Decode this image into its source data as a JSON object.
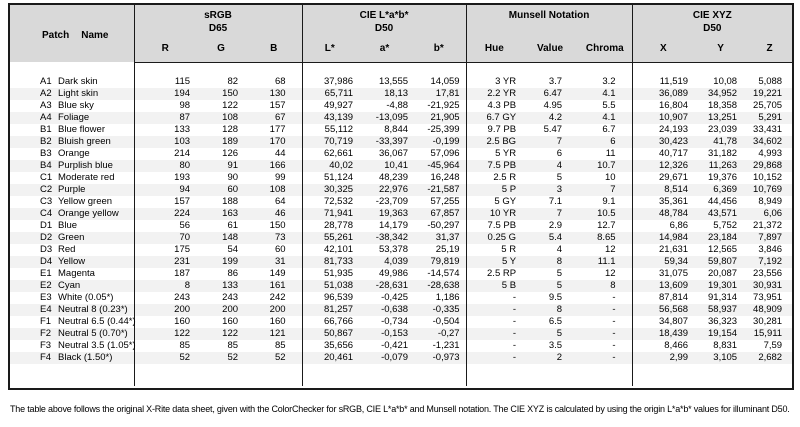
{
  "header": {
    "patch": "Patch",
    "name": "Name",
    "groups": [
      {
        "title": "sRGB",
        "sub": "D65",
        "cols": [
          "R",
          "G",
          "B"
        ]
      },
      {
        "title": "CIE L*a*b*",
        "sub": "D50",
        "cols": [
          "L*",
          "a*",
          "b*"
        ]
      },
      {
        "title": "Munsell Notation",
        "sub": "",
        "cols": [
          "Hue",
          "Value",
          "Chroma"
        ]
      },
      {
        "title": "CIE XYZ",
        "sub": "D50",
        "cols": [
          "X",
          "Y",
          "Z"
        ]
      }
    ]
  },
  "rows": [
    {
      "patch": "A1",
      "name": "Dark skin",
      "R": "115",
      "G": "82",
      "B": "68",
      "L": "37,986",
      "a": "13,555",
      "b": "14,059",
      "hue": "3 YR",
      "value": "3.7",
      "chroma": "3.2",
      "X": "11,519",
      "Y": "10,08",
      "Z": "5,088"
    },
    {
      "patch": "A2",
      "name": "Light skin",
      "R": "194",
      "G": "150",
      "B": "130",
      "L": "65,711",
      "a": "18,13",
      "b": "17,81",
      "hue": "2.2 YR",
      "value": "6.47",
      "chroma": "4.1",
      "X": "36,089",
      "Y": "34,952",
      "Z": "19,221"
    },
    {
      "patch": "A3",
      "name": "Blue sky",
      "R": "98",
      "G": "122",
      "B": "157",
      "L": "49,927",
      "a": "-4,88",
      "b": "-21,925",
      "hue": "4.3 PB",
      "value": "4.95",
      "chroma": "5.5",
      "X": "16,804",
      "Y": "18,358",
      "Z": "25,705"
    },
    {
      "patch": "A4",
      "name": "Foliage",
      "R": "87",
      "G": "108",
      "B": "67",
      "L": "43,139",
      "a": "-13,095",
      "b": "21,905",
      "hue": "6.7 GY",
      "value": "4.2",
      "chroma": "4.1",
      "X": "10,907",
      "Y": "13,251",
      "Z": "5,291"
    },
    {
      "patch": "B1",
      "name": "Blue flower",
      "R": "133",
      "G": "128",
      "B": "177",
      "L": "55,112",
      "a": "8,844",
      "b": "-25,399",
      "hue": "9.7 PB",
      "value": "5.47",
      "chroma": "6.7",
      "X": "24,193",
      "Y": "23,039",
      "Z": "33,431"
    },
    {
      "patch": "B2",
      "name": "Bluish green",
      "R": "103",
      "G": "189",
      "B": "170",
      "L": "70,719",
      "a": "-33,397",
      "b": "-0,199",
      "hue": "2.5 BG",
      "value": "7",
      "chroma": "6",
      "X": "30,423",
      "Y": "41,78",
      "Z": "34,602"
    },
    {
      "patch": "B3",
      "name": "Orange",
      "R": "214",
      "G": "126",
      "B": "44",
      "L": "62,661",
      "a": "36,067",
      "b": "57,096",
      "hue": "5 YR",
      "value": "6",
      "chroma": "11",
      "X": "40,717",
      "Y": "31,182",
      "Z": "4,993"
    },
    {
      "patch": "B4",
      "name": "Purplish blue",
      "R": "80",
      "G": "91",
      "B": "166",
      "L": "40,02",
      "a": "10,41",
      "b": "-45,964",
      "hue": "7.5 PB",
      "value": "4",
      "chroma": "10.7",
      "X": "12,326",
      "Y": "11,263",
      "Z": "29,868"
    },
    {
      "patch": "C1",
      "name": "Moderate red",
      "R": "193",
      "G": "90",
      "B": "99",
      "L": "51,124",
      "a": "48,239",
      "b": "16,248",
      "hue": "2.5 R",
      "value": "5",
      "chroma": "10",
      "X": "29,671",
      "Y": "19,376",
      "Z": "10,152"
    },
    {
      "patch": "C2",
      "name": "Purple",
      "R": "94",
      "G": "60",
      "B": "108",
      "L": "30,325",
      "a": "22,976",
      "b": "-21,587",
      "hue": "5 P",
      "value": "3",
      "chroma": "7",
      "X": "8,514",
      "Y": "6,369",
      "Z": "10,769"
    },
    {
      "patch": "C3",
      "name": "Yellow green",
      "R": "157",
      "G": "188",
      "B": "64",
      "L": "72,532",
      "a": "-23,709",
      "b": "57,255",
      "hue": "5 GY",
      "value": "7.1",
      "chroma": "9.1",
      "X": "35,361",
      "Y": "44,456",
      "Z": "8,949"
    },
    {
      "patch": "C4",
      "name": "Orange yellow",
      "R": "224",
      "G": "163",
      "B": "46",
      "L": "71,941",
      "a": "19,363",
      "b": "67,857",
      "hue": "10 YR",
      "value": "7",
      "chroma": "10.5",
      "X": "48,784",
      "Y": "43,571",
      "Z": "6,06"
    },
    {
      "patch": "D1",
      "name": "Blue",
      "R": "56",
      "G": "61",
      "B": "150",
      "L": "28,778",
      "a": "14,179",
      "b": "-50,297",
      "hue": "7.5 PB",
      "value": "2.9",
      "chroma": "12.7",
      "X": "6,86",
      "Y": "5,752",
      "Z": "21,372"
    },
    {
      "patch": "D2",
      "name": "Green",
      "R": "70",
      "G": "148",
      "B": "73",
      "L": "55,261",
      "a": "-38,342",
      "b": "31,37",
      "hue": "0.25 G",
      "value": "5.4",
      "chroma": "8.65",
      "X": "14,984",
      "Y": "23,184",
      "Z": "7,897"
    },
    {
      "patch": "D3",
      "name": "Red",
      "R": "175",
      "G": "54",
      "B": "60",
      "L": "42,101",
      "a": "53,378",
      "b": "25,19",
      "hue": "5 R",
      "value": "4",
      "chroma": "12",
      "X": "21,631",
      "Y": "12,565",
      "Z": "3,846"
    },
    {
      "patch": "D4",
      "name": "Yellow",
      "R": "231",
      "G": "199",
      "B": "31",
      "L": "81,733",
      "a": "4,039",
      "b": "79,819",
      "hue": "5 Y",
      "value": "8",
      "chroma": "11.1",
      "X": "59,34",
      "Y": "59,807",
      "Z": "7,192"
    },
    {
      "patch": "E1",
      "name": "Magenta",
      "R": "187",
      "G": "86",
      "B": "149",
      "L": "51,935",
      "a": "49,986",
      "b": "-14,574",
      "hue": "2.5 RP",
      "value": "5",
      "chroma": "12",
      "X": "31,075",
      "Y": "20,087",
      "Z": "23,556"
    },
    {
      "patch": "E2",
      "name": "Cyan",
      "R": "8",
      "G": "133",
      "B": "161",
      "L": "51,038",
      "a": "-28,631",
      "b": "-28,638",
      "hue": "5 B",
      "value": "5",
      "chroma": "8",
      "X": "13,609",
      "Y": "19,301",
      "Z": "30,931"
    },
    {
      "patch": "E3",
      "name": "White (0.05*)",
      "R": "243",
      "G": "243",
      "B": "242",
      "L": "96,539",
      "a": "-0,425",
      "b": "1,186",
      "hue": "-",
      "value": "9.5",
      "chroma": "-",
      "X": "87,814",
      "Y": "91,314",
      "Z": "73,951"
    },
    {
      "patch": "E4",
      "name": "Neutral 8 (0.23*)",
      "R": "200",
      "G": "200",
      "B": "200",
      "L": "81,257",
      "a": "-0,638",
      "b": "-0,335",
      "hue": "-",
      "value": "8",
      "chroma": "-",
      "X": "56,568",
      "Y": "58,937",
      "Z": "48,909"
    },
    {
      "patch": "F1",
      "name": "Neutral 6.5 (0.44*)",
      "R": "160",
      "G": "160",
      "B": "160",
      "L": "66,766",
      "a": "-0,734",
      "b": "-0,504",
      "hue": "-",
      "value": "6.5",
      "chroma": "-",
      "X": "34,807",
      "Y": "36,323",
      "Z": "30,281"
    },
    {
      "patch": "F2",
      "name": "Neutral 5 (0.70*)",
      "R": "122",
      "G": "122",
      "B": "121",
      "L": "50,867",
      "a": "-0,153",
      "b": "-0,27",
      "hue": "-",
      "value": "5",
      "chroma": "-",
      "X": "18,439",
      "Y": "19,154",
      "Z": "15,911"
    },
    {
      "patch": "F3",
      "name": "Neutral 3.5 (1.05*)",
      "R": "85",
      "G": "85",
      "B": "85",
      "L": "35,656",
      "a": "-0,421",
      "b": "-1,231",
      "hue": "-",
      "value": "3.5",
      "chroma": "-",
      "X": "8,466",
      "Y": "8,831",
      "Z": "7,59"
    },
    {
      "patch": "F4",
      "name": "Black (1.50*)",
      "R": "52",
      "G": "52",
      "B": "52",
      "L": "20,461",
      "a": "-0,079",
      "b": "-0,973",
      "hue": "-",
      "value": "2",
      "chroma": "-",
      "X": "2,99",
      "Y": "3,105",
      "Z": "2,682"
    }
  ],
  "footer": "The table above follows the original X-Rite data sheet, given with the ColorChecker for sRGB, CIE L*a*b* and Munsell notation. The CIE XYZ is calculated by using the origin L*a*b* values for illuminant D50.",
  "colors": {
    "header_bg": "#d9d9d9",
    "stripe": "#f2f2f2",
    "border": "#1a1a1a"
  }
}
